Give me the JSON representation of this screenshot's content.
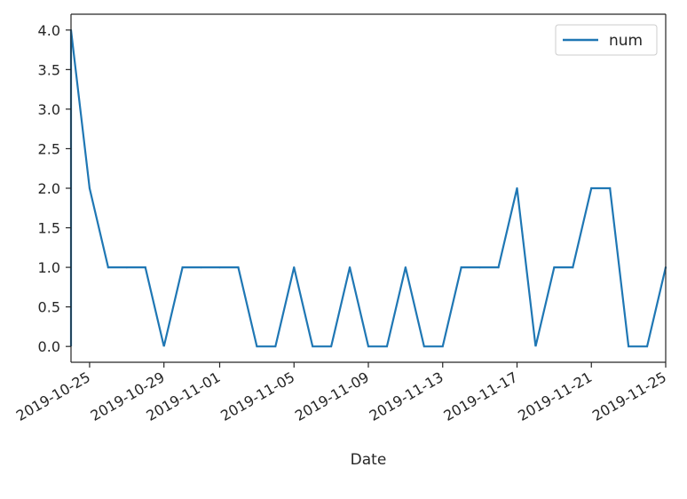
{
  "chart_data": {
    "type": "line",
    "title": "",
    "xlabel": "Date",
    "ylabel": "",
    "legend_position": "top-right",
    "grid": false,
    "colors": {
      "series": "#1f77b4",
      "axis": "#262626"
    },
    "x_range": [
      "2019-10-24",
      "2019-11-25"
    ],
    "ylim": [
      -0.2,
      4.2
    ],
    "x_ticks": [
      "2019-10-25",
      "2019-10-29",
      "2019-11-01",
      "2019-11-05",
      "2019-11-09",
      "2019-11-13",
      "2019-11-17",
      "2019-11-21",
      "2019-11-25"
    ],
    "y_ticks": [
      "0.0",
      "0.5",
      "1.0",
      "1.5",
      "2.0",
      "2.5",
      "3.0",
      "3.5",
      "4.0"
    ],
    "series": [
      {
        "name": "num",
        "points": [
          {
            "x": "2019-10-24",
            "y": 4
          },
          {
            "x": "2019-10-25",
            "y": 2
          },
          {
            "x": "2019-10-26",
            "y": 1
          },
          {
            "x": "2019-10-27",
            "y": 1
          },
          {
            "x": "2019-10-28",
            "y": 1
          },
          {
            "x": "2019-10-30",
            "y": 1
          },
          {
            "x": "2019-10-31",
            "y": 1
          },
          {
            "x": "2019-11-01",
            "y": 1
          },
          {
            "x": "2019-11-02",
            "y": 1
          },
          {
            "x": "2019-11-05",
            "y": 1
          },
          {
            "x": "2019-11-08",
            "y": 1
          },
          {
            "x": "2019-11-11",
            "y": 1
          },
          {
            "x": "2019-11-14",
            "y": 1
          },
          {
            "x": "2019-11-15",
            "y": 1
          },
          {
            "x": "2019-11-16",
            "y": 1
          },
          {
            "x": "2019-11-17",
            "y": 2
          },
          {
            "x": "2019-11-19",
            "y": 1
          },
          {
            "x": "2019-11-20",
            "y": 1
          },
          {
            "x": "2019-11-21",
            "y": 2
          },
          {
            "x": "2019-11-22",
            "y": 2
          },
          {
            "x": "2019-11-25",
            "y": 1
          }
        ]
      }
    ]
  }
}
